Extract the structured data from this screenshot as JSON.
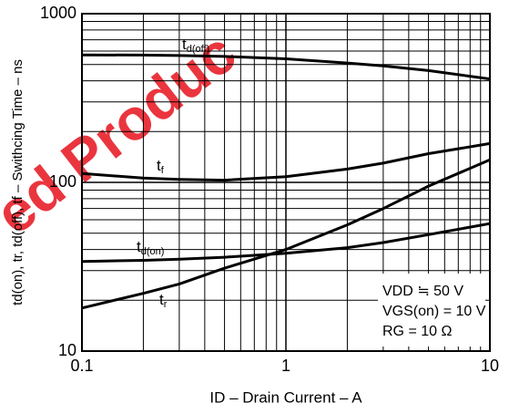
{
  "chart_data": {
    "type": "line",
    "watermark": "ed Produc",
    "x_label": "ID – Drain Current – A",
    "y_label": "td(on), tr, td(off), tf – Swithcing Time – ns",
    "x": [
      0.1,
      0.2,
      0.3,
      0.5,
      1,
      2,
      3,
      5,
      10
    ],
    "series": [
      {
        "name": "td(off)",
        "color": "#000000",
        "values": [
          570,
          568,
          565,
          558,
          540,
          510,
          490,
          460,
          410
        ]
      },
      {
        "name": "tf",
        "color": "#000000",
        "values": [
          113,
          106,
          104,
          103,
          108,
          120,
          130,
          148,
          170
        ]
      },
      {
        "name": "td(on)",
        "color": "#000000",
        "values": [
          34,
          34.5,
          35,
          36,
          38,
          41,
          44,
          49,
          57
        ]
      },
      {
        "name": "tr",
        "color": "#000000",
        "values": [
          18,
          22,
          25,
          31,
          40,
          56,
          70,
          95,
          136
        ]
      }
    ],
    "xlim": [
      0.1,
      10
    ],
    "xticks": [
      0.1,
      1,
      10
    ],
    "x_log": true,
    "ylim": [
      10,
      1000
    ],
    "yticks": [
      10,
      100,
      1000
    ],
    "y_log": true,
    "grid": true,
    "annotations": [
      "VDD ≒ 50 V",
      "VGS(on) = 10 V",
      "RG = 10 Ω"
    ]
  }
}
